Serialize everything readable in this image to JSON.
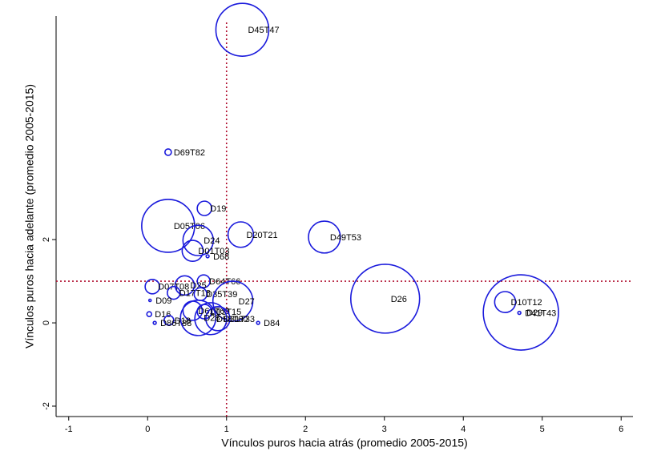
{
  "chart_data": {
    "type": "scatter",
    "x_label": "Vínculos puros hacia atrás (promedio 2005-2015)",
    "y_label": "Vínculos puros hacia adelante (promedio 2005-2015)",
    "labels": [
      "D45T47",
      "D69T82",
      "D19",
      "D05T06",
      "D20T21",
      "D49T53",
      "D24",
      "D01T03",
      "D68",
      "D64T66",
      "D25",
      "D07T08",
      "D17T18",
      "D35T39",
      "D09",
      "D27",
      "D26",
      "D10T12",
      "D29",
      "D41T43",
      "D16",
      "D61T63",
      "D13T15",
      "D31T33",
      "D58T60",
      "D84",
      "D18",
      "D86T88",
      "D28"
    ],
    "x": [
      1.2,
      0.26,
      0.72,
      0.26,
      1.18,
      2.24,
      0.64,
      0.57,
      0.76,
      0.71,
      0.47,
      0.06,
      0.33,
      0.67,
      0.03,
      1.08,
      3.01,
      4.53,
      4.73,
      4.71,
      0.02,
      0.57,
      0.72,
      0.89,
      0.8,
      1.4,
      0.27,
      0.09,
      0.64
    ],
    "values": [
      7.04,
      4.1,
      2.75,
      2.33,
      2.12,
      2.06,
      1.98,
      1.73,
      1.6,
      1.0,
      0.9,
      0.87,
      0.72,
      0.69,
      0.54,
      0.52,
      0.58,
      0.5,
      0.25,
      0.24,
      0.21,
      0.29,
      0.27,
      0.1,
      0.1,
      0.0,
      0.06,
      0.0,
      0.12
    ],
    "sizes": [
      121,
      1.8,
      9,
      121,
      28,
      44,
      40,
      19,
      0.4,
      7,
      16,
      9,
      7,
      7,
      0.25,
      69,
      205,
      19,
      245,
      0.4,
      1,
      16,
      9,
      25,
      44,
      0.4,
      4,
      0.4,
      54
    ],
    "color": "#1a1adc",
    "ref_x": 1,
    "ref_y": 1,
    "ref_color": "#b01030",
    "xlim": [
      -1.16,
      6.15
    ],
    "xticks": [
      -1,
      0,
      1,
      2,
      3,
      4,
      5,
      6
    ],
    "ylim": [
      -2.25,
      7.37
    ],
    "yticks": [
      -2,
      0,
      2
    ]
  }
}
